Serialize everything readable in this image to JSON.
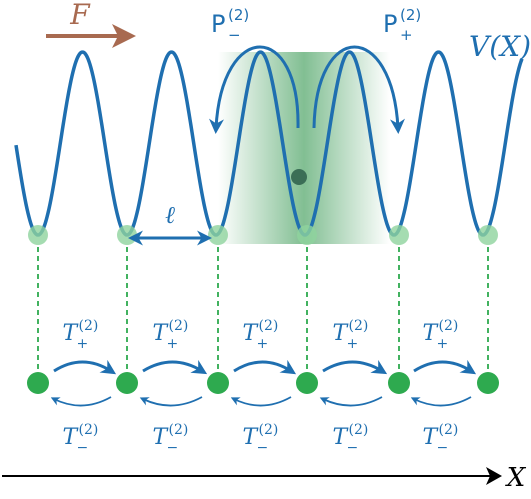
{
  "labels": {
    "force": "F",
    "potential": "V(X)",
    "spacing": "ℓ",
    "axis": "X",
    "p_minus": "P",
    "p_minus_sup": "(2)",
    "p_minus_sub": "−",
    "p_plus": "P",
    "p_plus_sup": "(2)",
    "p_plus_sub": "+",
    "t_plus": "T",
    "t_plus_sup": "(2)",
    "t_plus_sub": "+",
    "t_minus": "T",
    "t_minus_sup": "(2)",
    "t_minus_sub": "−"
  },
  "colors": {
    "potential_line": "#1f6fb0",
    "force_arrow": "#a86a50",
    "well_point": "#2eaa4f",
    "well_halo": "#8fd39e",
    "dashed_line": "#2eaa4f",
    "wavepacket": "#1b8a3a",
    "particle": "#3b6e56",
    "axis": "#000000"
  },
  "sites": 6,
  "hops": 5
}
